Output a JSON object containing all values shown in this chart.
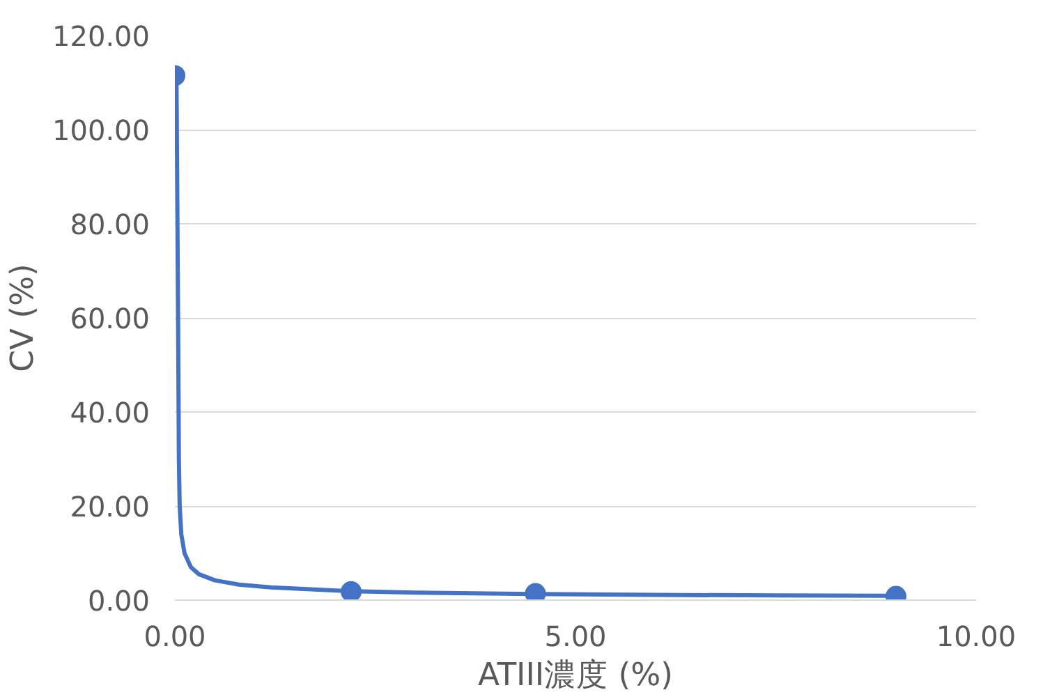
{
  "chart_data": {
    "type": "scatter",
    "xlabel": "ATIII濃度 (%)",
    "ylabel": "CV (%)",
    "xlim": [
      0,
      10
    ],
    "ylim": [
      0,
      120
    ],
    "xticks": [
      {
        "value": 0,
        "label": "0.00"
      },
      {
        "value": 5,
        "label": "5.00"
      },
      {
        "value": 10,
        "label": "10.00"
      }
    ],
    "yticks": [
      {
        "value": 0,
        "label": "0.00"
      },
      {
        "value": 20,
        "label": "20.00"
      },
      {
        "value": 40,
        "label": "40.00"
      },
      {
        "value": 60,
        "label": "60.00"
      },
      {
        "value": 80,
        "label": "80.00"
      },
      {
        "value": 100,
        "label": "100.00"
      },
      {
        "value": 120,
        "label": "120.00"
      }
    ],
    "grid": "y",
    "series": [
      {
        "marker": "circle",
        "color": "#4472c4",
        "x": [
          0.0,
          2.2,
          4.5,
          9.0
        ],
        "values": [
          111.5,
          1.8,
          1.4,
          0.8
        ]
      },
      {
        "type": "line",
        "marker": "none",
        "color": "#4472c4",
        "line_style": "solid",
        "x": [
          0.02,
          0.04,
          0.05,
          0.06,
          0.08,
          0.12,
          0.2,
          0.3,
          0.5,
          0.8,
          1.2,
          2.2,
          3,
          4.5,
          6,
          7.5,
          9.0
        ],
        "values": [
          111.5,
          60,
          30,
          20,
          14,
          10,
          7,
          5.5,
          4.2,
          3.3,
          2.7,
          1.9,
          1.6,
          1.3,
          1.1,
          1.0,
          0.9
        ]
      }
    ]
  }
}
